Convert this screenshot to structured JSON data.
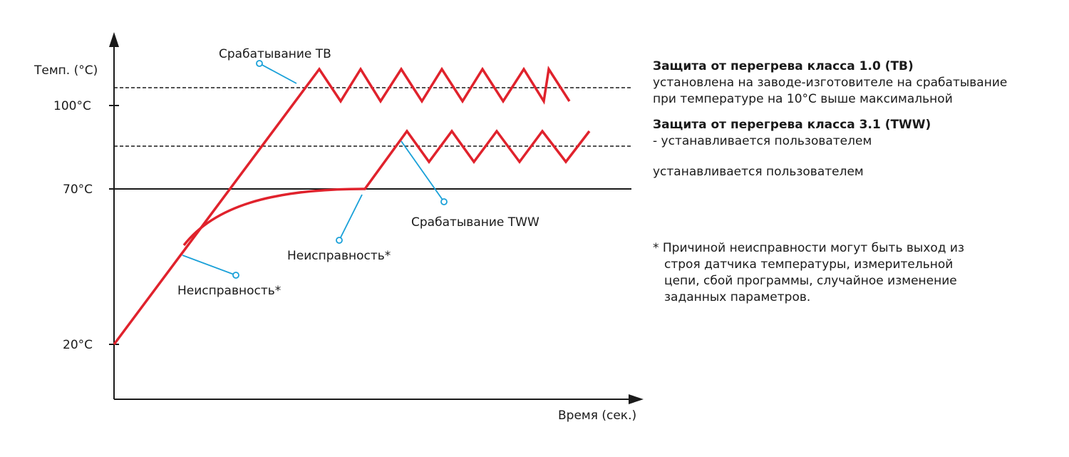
{
  "axes": {
    "y_title": "Темп. (°C)",
    "x_title": "Время (сек.)",
    "y_ticks": [
      "100°C",
      "70°C",
      "20°C"
    ]
  },
  "callouts": {
    "tb_trigger": "Срабатывание ТВ",
    "tww_trigger": "Срабатывание TWW",
    "fault_upper": "Неисправность*",
    "fault_lower": "Неисправность*"
  },
  "legend": {
    "class10_title": "Защита от перегрева класса 1.0 (ТВ)",
    "class10_line1": "установлена на заводе-изготовителе на срабатывание",
    "class10_line2": "при температуре на 10°C выше максимальной",
    "class31_title": "Защита от перегрева класса 3.1 (TWW)",
    "class31_line1": "- устанавливается пользователем",
    "line70_text": "устанавливается пользователем",
    "footnote": "* Причиной неисправности могут быть выход из строя датчика температуры, измерительной цепи, сбой программы, случайное изменение заданных параметров."
  },
  "colors": {
    "curve": "#e0222c",
    "callout": "#19a0d8",
    "axis": "#1a1a1a"
  }
}
